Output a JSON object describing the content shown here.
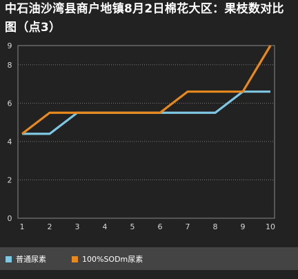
{
  "chart_data": {
    "type": "line",
    "title": "中石油沙湾县商户地镇8月2日棉花大区：果枝数对比图（点3）",
    "xlabel": "",
    "ylabel": "",
    "x": [
      1,
      2,
      3,
      4,
      5,
      6,
      7,
      8,
      9,
      10
    ],
    "x_tick_labels": [
      "1",
      "2",
      "3",
      "4",
      "5",
      "6",
      "7",
      "8",
      "9",
      "10"
    ],
    "y_tick_labels": [
      "0",
      "2",
      "4",
      "6",
      "8",
      "9"
    ],
    "xlim": [
      1,
      10
    ],
    "ylim": [
      0,
      9
    ],
    "grid": "horizontal dotted",
    "legend_position": "bottom",
    "series": [
      {
        "name": "普通尿素",
        "color": "#7ec8e3",
        "values": [
          4.4,
          4.4,
          5.5,
          5.5,
          5.5,
          5.5,
          5.5,
          5.5,
          6.6,
          6.6
        ]
      },
      {
        "name": "100%SODm尿素",
        "color": "#e8891e",
        "values": [
          4.4,
          5.5,
          5.5,
          5.5,
          5.5,
          5.5,
          6.6,
          6.6,
          6.6,
          9.0
        ]
      }
    ]
  }
}
